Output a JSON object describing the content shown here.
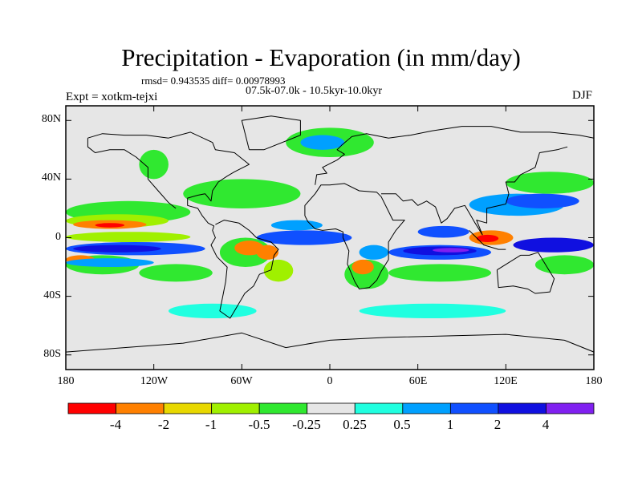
{
  "title": "Precipitation - Evaporation (in mm/day)",
  "stats": "rmsd= 0.943535 diff= 0.00978993",
  "period": "07.5k-07.0k - 10.5kyr-10.0kyr",
  "experiment": "Expt = xotkm-tejxi",
  "season": "DJF",
  "lat_ticks": [
    {
      "label": "80N",
      "value": 80
    },
    {
      "label": "40N",
      "value": 40
    },
    {
      "label": "0",
      "value": 0
    },
    {
      "label": "40S",
      "value": -40
    },
    {
      "label": "80S",
      "value": -80
    }
  ],
  "lon_ticks": [
    {
      "label": "180",
      "value": -180
    },
    {
      "label": "120W",
      "value": -120
    },
    {
      "label": "60W",
      "value": -60
    },
    {
      "label": "0",
      "value": 0
    },
    {
      "label": "60E",
      "value": 60
    },
    {
      "label": "120E",
      "value": 120
    },
    {
      "label": "180",
      "value": 180
    }
  ],
  "colorbar": {
    "labels": [
      "-4",
      "-2",
      "-1",
      "-0.5",
      "-0.25",
      "0.25",
      "0.5",
      "1",
      "2",
      "4"
    ],
    "colors": [
      "#ff0000",
      "#ff8000",
      "#e8d800",
      "#a0f000",
      "#30e830",
      "#e6e6e6",
      "#20ffe0",
      "#00a0ff",
      "#1050ff",
      "#1010e0",
      "#8020f0"
    ]
  },
  "map": {
    "lon_range": [
      -180,
      180
    ],
    "lat_range": [
      -90,
      90
    ],
    "background_color": "#e6e6e6",
    "bands": [
      {
        "color": "#30e830",
        "lon": [
          -180,
          -95
        ],
        "lat": [
          10,
          25
        ]
      },
      {
        "color": "#a0f000",
        "lon": [
          -180,
          -110
        ],
        "lat": [
          7,
          16
        ]
      },
      {
        "color": "#ff8000",
        "lon": [
          -175,
          -125
        ],
        "lat": [
          6,
          12
        ]
      },
      {
        "color": "#ff0000",
        "lon": [
          -160,
          -140
        ],
        "lat": [
          7,
          10
        ]
      },
      {
        "color": "#a0f000",
        "lon": [
          -180,
          -95
        ],
        "lat": [
          -3,
          4
        ]
      },
      {
        "color": "#1050ff",
        "lon": [
          -180,
          -85
        ],
        "lat": [
          -12,
          -3
        ]
      },
      {
        "color": "#1010e0",
        "lon": [
          -175,
          -115
        ],
        "lat": [
          -10,
          -5
        ]
      },
      {
        "color": "#30e830",
        "lon": [
          -180,
          -130
        ],
        "lat": [
          -25,
          -12
        ]
      },
      {
        "color": "#ff8000",
        "lon": [
          -180,
          -160
        ],
        "lat": [
          -18,
          -12
        ]
      },
      {
        "color": "#00a0ff",
        "lon": [
          -180,
          -120
        ],
        "lat": [
          -20,
          -14
        ]
      },
      {
        "color": "#30e830",
        "lon": [
          -130,
          -80
        ],
        "lat": [
          -30,
          -18
        ]
      },
      {
        "color": "#30e830",
        "lon": [
          -100,
          -20
        ],
        "lat": [
          20,
          40
        ]
      },
      {
        "color": "#30e830",
        "lon": [
          -75,
          -40
        ],
        "lat": [
          -20,
          0
        ]
      },
      {
        "color": "#ff8000",
        "lon": [
          -65,
          -45
        ],
        "lat": [
          -12,
          -2
        ]
      },
      {
        "color": "#a0f000",
        "lon": [
          -45,
          -25
        ],
        "lat": [
          -30,
          -15
        ]
      },
      {
        "color": "#ff8000",
        "lon": [
          -50,
          -35
        ],
        "lat": [
          -15,
          -5
        ]
      },
      {
        "color": "#1050ff",
        "lon": [
          -50,
          15
        ],
        "lat": [
          -5,
          5
        ]
      },
      {
        "color": "#00a0ff",
        "lon": [
          -40,
          -5
        ],
        "lat": [
          5,
          12
        ]
      },
      {
        "color": "#30e830",
        "lon": [
          10,
          40
        ],
        "lat": [
          -35,
          -15
        ]
      },
      {
        "color": "#ff8000",
        "lon": [
          15,
          30
        ],
        "lat": [
          -25,
          -15
        ]
      },
      {
        "color": "#00a0ff",
        "lon": [
          20,
          40
        ],
        "lat": [
          -15,
          -5
        ]
      },
      {
        "color": "#1050ff",
        "lon": [
          40,
          110
        ],
        "lat": [
          -15,
          -5
        ]
      },
      {
        "color": "#1010e0",
        "lon": [
          50,
          100
        ],
        "lat": [
          -12,
          -6
        ]
      },
      {
        "color": "#8020f0",
        "lon": [
          70,
          95
        ],
        "lat": [
          -10,
          -7
        ]
      },
      {
        "color": "#30e830",
        "lon": [
          40,
          110
        ],
        "lat": [
          -30,
          -18
        ]
      },
      {
        "color": "#1050ff",
        "lon": [
          60,
          95
        ],
        "lat": [
          0,
          8
        ]
      },
      {
        "color": "#00a0ff",
        "lon": [
          95,
          160
        ],
        "lat": [
          15,
          30
        ]
      },
      {
        "color": "#1050ff",
        "lon": [
          120,
          170
        ],
        "lat": [
          20,
          30
        ]
      },
      {
        "color": "#30e830",
        "lon": [
          120,
          180
        ],
        "lat": [
          30,
          45
        ]
      },
      {
        "color": "#ff8000",
        "lon": [
          95,
          125
        ],
        "lat": [
          -5,
          5
        ]
      },
      {
        "color": "#ff0000",
        "lon": [
          100,
          115
        ],
        "lat": [
          -3,
          2
        ]
      },
      {
        "color": "#1010e0",
        "lon": [
          125,
          180
        ],
        "lat": [
          -10,
          0
        ]
      },
      {
        "color": "#30e830",
        "lon": [
          140,
          180
        ],
        "lat": [
          -25,
          -12
        ]
      },
      {
        "color": "#30e830",
        "lon": [
          -30,
          30
        ],
        "lat": [
          55,
          75
        ]
      },
      {
        "color": "#00a0ff",
        "lon": [
          -20,
          10
        ],
        "lat": [
          60,
          70
        ]
      },
      {
        "color": "#30e830",
        "lon": [
          -130,
          -110
        ],
        "lat": [
          40,
          60
        ]
      },
      {
        "color": "#20ffe0",
        "lon": [
          -110,
          -50
        ],
        "lat": [
          -55,
          -45
        ]
      },
      {
        "color": "#20ffe0",
        "lon": [
          20,
          120
        ],
        "lat": [
          -55,
          -45
        ]
      }
    ],
    "coastlines": [
      [
        [
          -165,
          68
        ],
        [
          -155,
          71
        ],
        [
          -140,
          70
        ],
        [
          -125,
          70
        ],
        [
          -110,
          68
        ],
        [
          -95,
          72
        ],
        [
          -80,
          65
        ],
        [
          -78,
          60
        ],
        [
          -65,
          58
        ],
        [
          -55,
          50
        ],
        [
          -65,
          45
        ],
        [
          -70,
          42
        ],
        [
          -76,
          38
        ],
        [
          -80,
          32
        ],
        [
          -81,
          25
        ],
        [
          -85,
          30
        ],
        [
          -90,
          29
        ],
        [
          -97,
          27
        ],
        [
          -97,
          22
        ],
        [
          -90,
          20
        ],
        [
          -87,
          15
        ],
        [
          -83,
          10
        ],
        [
          -79,
          8
        ],
        [
          -80,
          5
        ],
        [
          -78,
          0
        ],
        [
          -81,
          -5
        ],
        [
          -77,
          -13
        ],
        [
          -70,
          -20
        ],
        [
          -71,
          -30
        ],
        [
          -73,
          -40
        ],
        [
          -75,
          -50
        ],
        [
          -68,
          -55
        ],
        [
          -65,
          -50
        ],
        [
          -58,
          -38
        ],
        [
          -52,
          -33
        ],
        [
          -48,
          -25
        ],
        [
          -40,
          -22
        ],
        [
          -38,
          -12
        ],
        [
          -35,
          -8
        ],
        [
          -40,
          -3
        ],
        [
          -50,
          0
        ],
        [
          -55,
          5
        ],
        [
          -62,
          10
        ],
        [
          -72,
          12
        ],
        [
          -78,
          9
        ]
      ],
      [
        [
          -105,
          20
        ],
        [
          -110,
          24
        ],
        [
          -117,
          32
        ],
        [
          -124,
          40
        ],
        [
          -124,
          48
        ],
        [
          -132,
          55
        ],
        [
          -140,
          60
        ],
        [
          -150,
          60
        ],
        [
          -160,
          58
        ],
        [
          -165,
          62
        ],
        [
          -165,
          68
        ]
      ],
      [
        [
          -17,
          15
        ],
        [
          -17,
          22
        ],
        [
          -10,
          30
        ],
        [
          -6,
          36
        ],
        [
          0,
          36
        ],
        [
          10,
          37
        ],
        [
          20,
          32
        ],
        [
          32,
          31
        ],
        [
          35,
          28
        ],
        [
          43,
          12
        ],
        [
          51,
          12
        ],
        [
          45,
          5
        ],
        [
          40,
          -3
        ],
        [
          40,
          -15
        ],
        [
          35,
          -23
        ],
        [
          32,
          -29
        ],
        [
          27,
          -34
        ],
        [
          20,
          -35
        ],
        [
          17,
          -30
        ],
        [
          12,
          -18
        ],
        [
          13,
          -9
        ],
        [
          9,
          0
        ],
        [
          9,
          4
        ],
        [
          4,
          6
        ],
        [
          -5,
          5
        ],
        [
          -10,
          6
        ],
        [
          -15,
          11
        ],
        [
          -17,
          15
        ]
      ],
      [
        [
          -10,
          36
        ],
        [
          -9,
          43
        ],
        [
          -2,
          44
        ],
        [
          -5,
          48
        ],
        [
          5,
          53
        ],
        [
          10,
          57
        ],
        [
          5,
          60
        ],
        [
          8,
          63
        ],
        [
          15,
          69
        ],
        [
          25,
          71
        ],
        [
          40,
          68
        ],
        [
          55,
          70
        ],
        [
          70,
          73
        ],
        [
          90,
          76
        ],
        [
          110,
          76
        ],
        [
          130,
          72
        ],
        [
          150,
          72
        ],
        [
          170,
          70
        ],
        [
          180,
          68
        ]
      ],
      [
        [
          35,
          30
        ],
        [
          45,
          30
        ],
        [
          50,
          25
        ],
        [
          56,
          26
        ],
        [
          60,
          22
        ],
        [
          66,
          25
        ],
        [
          72,
          21
        ],
        [
          76,
          10
        ],
        [
          80,
          13
        ],
        [
          85,
          20
        ],
        [
          92,
          22
        ],
        [
          95,
          17
        ],
        [
          99,
          10
        ],
        [
          104,
          2
        ],
        [
          100,
          12
        ],
        [
          107,
          10
        ],
        [
          107,
          20
        ],
        [
          120,
          23
        ],
        [
          122,
          30
        ],
        [
          120,
          38
        ],
        [
          126,
          38
        ],
        [
          130,
          43
        ],
        [
          140,
          48
        ],
        [
          143,
          58
        ],
        [
          155,
          60
        ],
        [
          162,
          62
        ]
      ],
      [
        [
          114,
          -22
        ],
        [
          115,
          -34
        ],
        [
          125,
          -33
        ],
        [
          135,
          -35
        ],
        [
          140,
          -38
        ],
        [
          150,
          -37
        ],
        [
          153,
          -28
        ],
        [
          145,
          -15
        ],
        [
          142,
          -10
        ],
        [
          136,
          -12
        ],
        [
          130,
          -12
        ],
        [
          122,
          -17
        ],
        [
          114,
          -22
        ]
      ],
      [
        [
          -55,
          60
        ],
        [
          -45,
          60
        ],
        [
          -20,
          70
        ],
        [
          -20,
          80
        ],
        [
          -40,
          83
        ],
        [
          -60,
          80
        ],
        [
          -55,
          60
        ]
      ],
      [
        [
          95,
          5
        ],
        [
          105,
          -5
        ],
        [
          115,
          -8
        ],
        [
          120,
          -8
        ]
      ],
      [
        [
          -180,
          -78
        ],
        [
          -140,
          -75
        ],
        [
          -100,
          -72
        ],
        [
          -60,
          -65
        ],
        [
          -30,
          -75
        ],
        [
          0,
          -70
        ],
        [
          40,
          -68
        ],
        [
          80,
          -67
        ],
        [
          120,
          -66
        ],
        [
          160,
          -70
        ],
        [
          180,
          -78
        ]
      ]
    ]
  }
}
